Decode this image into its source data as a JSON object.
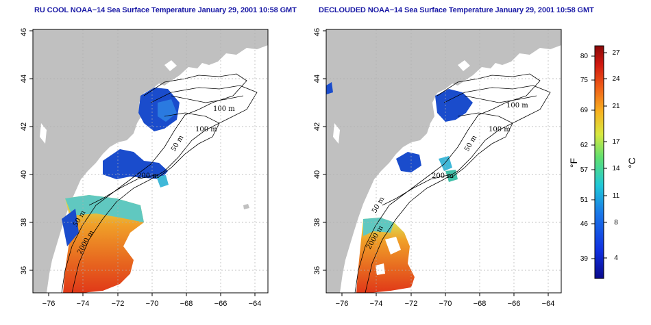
{
  "left_panel": {
    "title": "RU COOL NOAA−14 Sea Surface Temperature January 29, 2001 10:58 GMT"
  },
  "right_panel": {
    "title": "DECLOUDED NOAA−14 Sea Surface Temperature January 29, 2001 10:58 GMT"
  },
  "axes": {
    "x_ticks": [
      "−76",
      "−74",
      "−72",
      "−70",
      "−68",
      "−66",
      "−64"
    ],
    "y_ticks": [
      "36",
      "38",
      "40",
      "42",
      "44",
      "46"
    ]
  },
  "contour_labels": [
    "100 m",
    "100 m",
    "50 m",
    "200 m",
    "50 m",
    "2000 m"
  ],
  "colorbar": {
    "fahrenheit_unit": "°F",
    "celsius_unit": "°C",
    "fahrenheit_ticks": [
      "80",
      "75",
      "69",
      "62",
      "57",
      "51",
      "46",
      "39"
    ],
    "celsius_ticks": [
      "27",
      "24",
      "21",
      "17",
      "14",
      "11",
      "8",
      "4"
    ]
  },
  "colors": {
    "land": "#c0c0c0",
    "title": "#1a1aa6",
    "warm": "#e0401a",
    "cold": "#1a4ccc"
  }
}
